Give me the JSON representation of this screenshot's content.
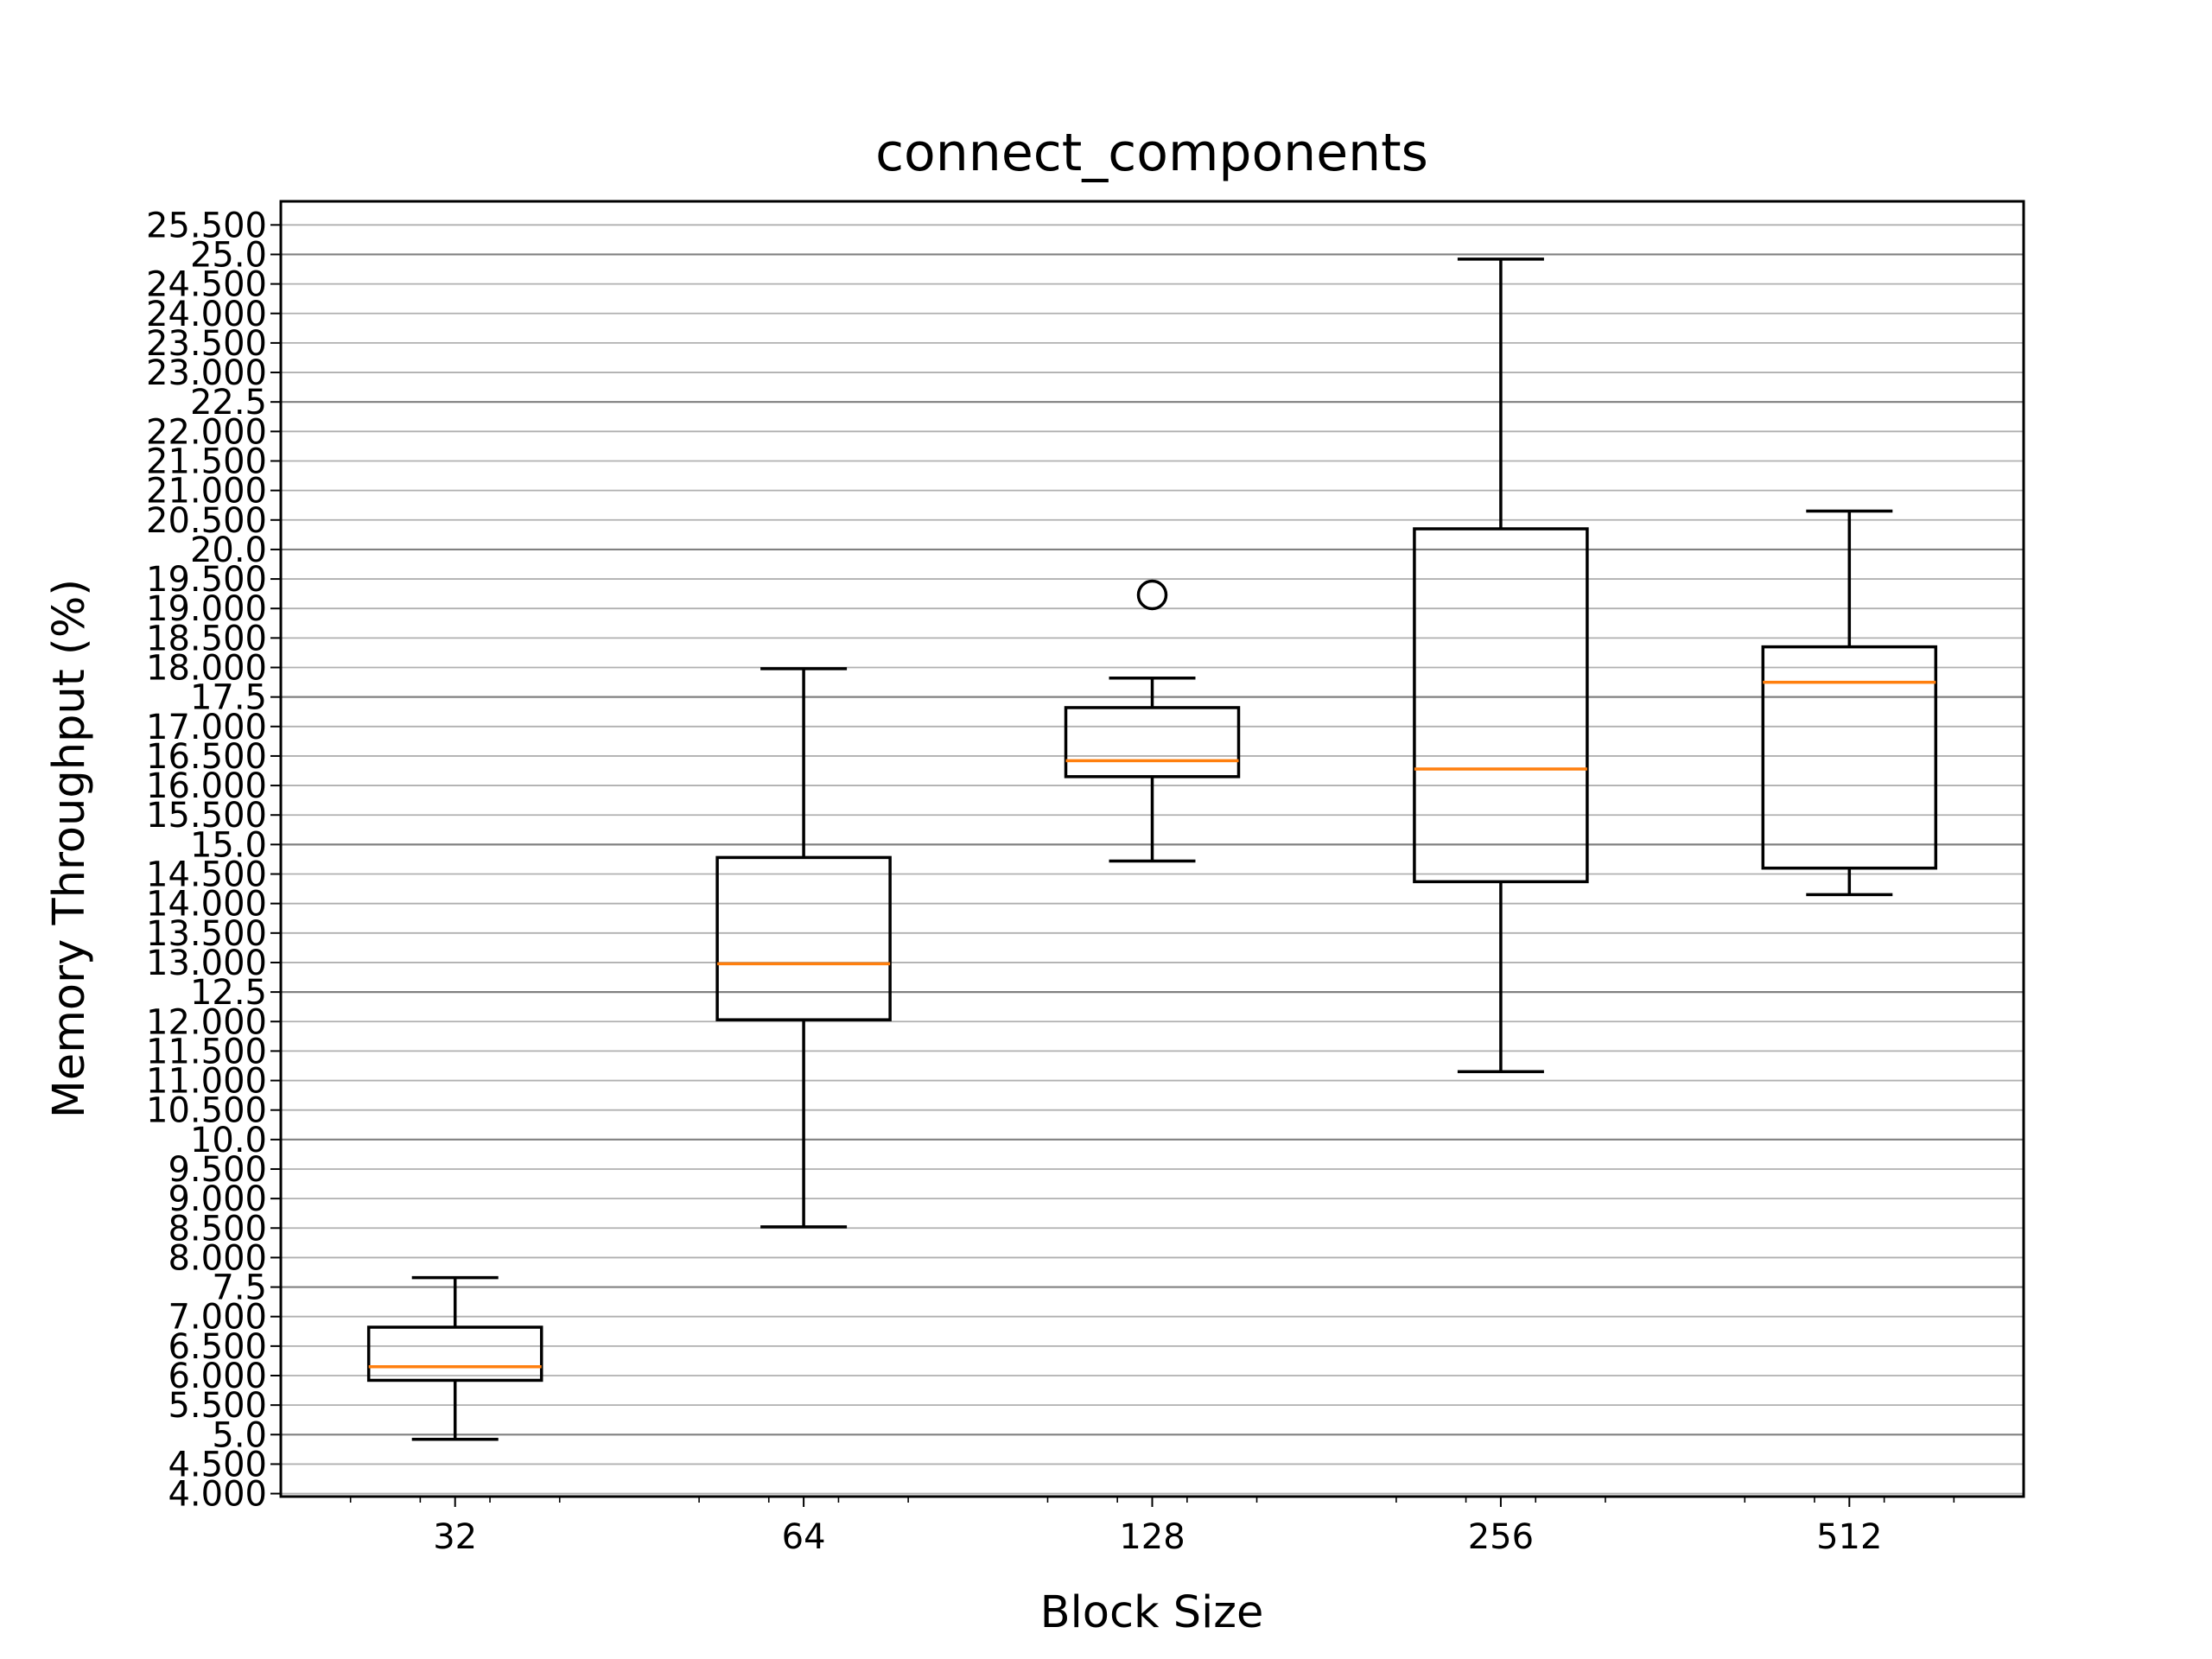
{
  "chart_data": {
    "type": "box",
    "title": "connect_components",
    "xlabel": "Block Size",
    "ylabel": "Memory Throughput (%)",
    "ylim": [
      3.95,
      25.9
    ],
    "grid": {
      "y": true,
      "x": false
    },
    "colors": {
      "box": "#000000",
      "median": "#ff7f0e",
      "grid": "#b0b0b0",
      "major_grid": "#808080"
    },
    "y_ticks": [
      {
        "v": 4.0,
        "label": "4.000"
      },
      {
        "v": 4.5,
        "label": "4.500"
      },
      {
        "v": 5.0,
        "label": "5.0"
      },
      {
        "v": 5.5,
        "label": "5.500"
      },
      {
        "v": 6.0,
        "label": "6.000"
      },
      {
        "v": 6.5,
        "label": "6.500"
      },
      {
        "v": 7.0,
        "label": "7.000"
      },
      {
        "v": 7.5,
        "label": "7.5"
      },
      {
        "v": 8.0,
        "label": "8.000"
      },
      {
        "v": 8.5,
        "label": "8.500"
      },
      {
        "v": 9.0,
        "label": "9.000"
      },
      {
        "v": 9.5,
        "label": "9.500"
      },
      {
        "v": 10.0,
        "label": "10.0"
      },
      {
        "v": 10.5,
        "label": "10.500"
      },
      {
        "v": 11.0,
        "label": "11.000"
      },
      {
        "v": 11.5,
        "label": "11.500"
      },
      {
        "v": 12.0,
        "label": "12.000"
      },
      {
        "v": 12.5,
        "label": "12.5"
      },
      {
        "v": 13.0,
        "label": "13.000"
      },
      {
        "v": 13.5,
        "label": "13.500"
      },
      {
        "v": 14.0,
        "label": "14.000"
      },
      {
        "v": 14.5,
        "label": "14.500"
      },
      {
        "v": 15.0,
        "label": "15.0"
      },
      {
        "v": 15.5,
        "label": "15.500"
      },
      {
        "v": 16.0,
        "label": "16.000"
      },
      {
        "v": 16.5,
        "label": "16.500"
      },
      {
        "v": 17.0,
        "label": "17.000"
      },
      {
        "v": 17.5,
        "label": "17.5"
      },
      {
        "v": 18.0,
        "label": "18.000"
      },
      {
        "v": 18.5,
        "label": "18.500"
      },
      {
        "v": 19.0,
        "label": "19.000"
      },
      {
        "v": 19.5,
        "label": "19.500"
      },
      {
        "v": 20.0,
        "label": "20.0"
      },
      {
        "v": 20.5,
        "label": "20.500"
      },
      {
        "v": 21.0,
        "label": "21.000"
      },
      {
        "v": 21.5,
        "label": "21.500"
      },
      {
        "v": 22.0,
        "label": "22.000"
      },
      {
        "v": 22.5,
        "label": "22.5"
      },
      {
        "v": 23.0,
        "label": "23.000"
      },
      {
        "v": 23.5,
        "label": "23.500"
      },
      {
        "v": 24.0,
        "label": "24.000"
      },
      {
        "v": 24.5,
        "label": "24.500"
      },
      {
        "v": 25.0,
        "label": "25.0"
      },
      {
        "v": 25.5,
        "label": "25.500"
      }
    ],
    "major_y": [
      5.0,
      7.5,
      10.0,
      12.5,
      15.0,
      17.5,
      20.0,
      22.5,
      25.0
    ],
    "categories": [
      "32",
      "64",
      "128",
      "256",
      "512"
    ],
    "boxes": [
      {
        "whislo": 4.92,
        "q1": 5.92,
        "med": 6.15,
        "q3": 6.82,
        "whishi": 7.66,
        "fliers": []
      },
      {
        "whislo": 8.52,
        "q1": 12.03,
        "med": 12.98,
        "q3": 14.78,
        "whishi": 17.98,
        "fliers": []
      },
      {
        "whislo": 14.72,
        "q1": 16.15,
        "med": 16.42,
        "q3": 17.32,
        "whishi": 17.82,
        "fliers": [
          19.23
        ]
      },
      {
        "whislo": 11.15,
        "q1": 14.37,
        "med": 16.28,
        "q3": 20.35,
        "whishi": 24.92,
        "fliers": []
      },
      {
        "whislo": 14.15,
        "q1": 14.6,
        "med": 17.75,
        "q3": 18.35,
        "whishi": 20.65,
        "fliers": []
      }
    ]
  }
}
